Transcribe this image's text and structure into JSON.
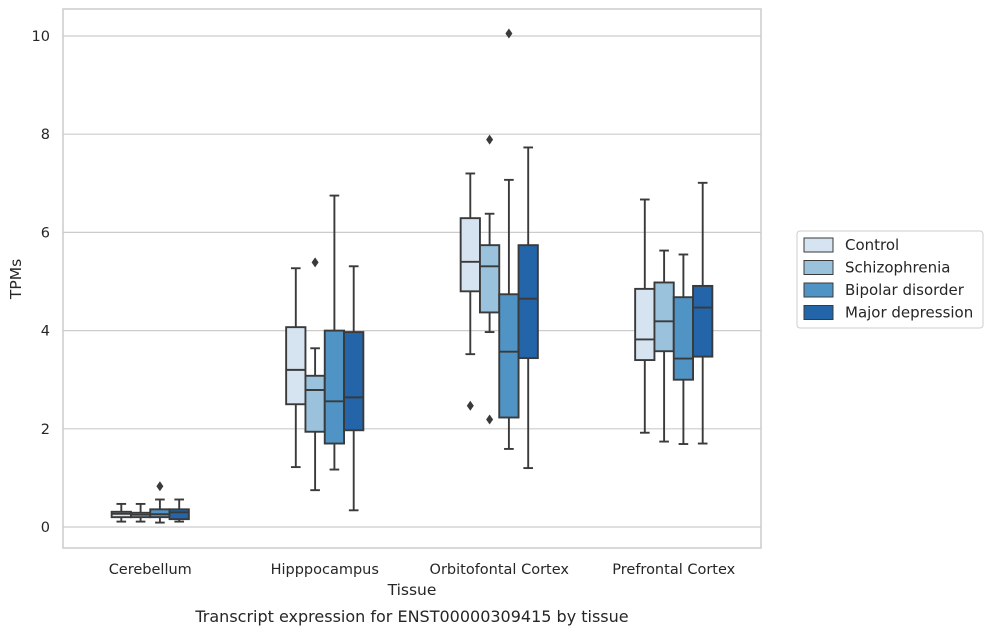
{
  "chart_data": {
    "type": "box",
    "title": "Transcript expression for ENST00000309415 by tissue",
    "xlabel": "Tissue",
    "ylabel": "TPMs",
    "ylim": [
      -0.4,
      10.55
    ],
    "yticks": [
      0,
      2,
      4,
      6,
      8,
      10
    ],
    "grid": true,
    "legend_position": "right",
    "categories": [
      "Cerebellum",
      "Hipppocampus",
      "Orbitofontal Cortex",
      "Prefrontal Cortex"
    ],
    "series": [
      {
        "name": "Control",
        "color": "#d6e3f1",
        "boxes": [
          {
            "whisker_low": 0.11,
            "q1": 0.2,
            "median": 0.27,
            "q3": 0.31,
            "whisker_high": 0.47,
            "outliers": []
          },
          {
            "whisker_low": 1.22,
            "q1": 2.5,
            "median": 3.2,
            "q3": 4.07,
            "whisker_high": 5.27,
            "outliers": []
          },
          {
            "whisker_low": 3.52,
            "q1": 4.8,
            "median": 5.4,
            "q3": 6.29,
            "whisker_high": 7.2,
            "outliers": [
              2.47
            ]
          },
          {
            "whisker_low": 1.92,
            "q1": 3.4,
            "median": 3.82,
            "q3": 4.85,
            "whisker_high": 6.67,
            "outliers": []
          }
        ]
      },
      {
        "name": "Schizophrenia",
        "color": "#9ac2dd",
        "boxes": [
          {
            "whisker_low": 0.11,
            "q1": 0.2,
            "median": 0.25,
            "q3": 0.29,
            "whisker_high": 0.47,
            "outliers": []
          },
          {
            "whisker_low": 0.75,
            "q1": 1.94,
            "median": 2.79,
            "q3": 3.08,
            "whisker_high": 3.64,
            "outliers": [
              5.39
            ]
          },
          {
            "whisker_low": 3.97,
            "q1": 4.37,
            "median": 5.31,
            "q3": 5.74,
            "whisker_high": 6.38,
            "outliers": [
              7.89,
              2.19
            ]
          },
          {
            "whisker_low": 1.74,
            "q1": 3.58,
            "median": 4.19,
            "q3": 4.98,
            "whisker_high": 5.63,
            "outliers": []
          }
        ]
      },
      {
        "name": "Bipolar disorder",
        "color": "#5094c5",
        "boxes": [
          {
            "whisker_low": 0.09,
            "q1": 0.2,
            "median": 0.26,
            "q3": 0.36,
            "whisker_high": 0.56,
            "outliers": [
              0.83
            ]
          },
          {
            "whisker_low": 1.17,
            "q1": 1.7,
            "median": 2.56,
            "q3": 4.0,
            "whisker_high": 6.75,
            "outliers": []
          },
          {
            "whisker_low": 1.59,
            "q1": 2.23,
            "median": 3.57,
            "q3": 4.74,
            "whisker_high": 7.07,
            "outliers": [
              10.05
            ]
          },
          {
            "whisker_low": 1.69,
            "q1": 3.0,
            "median": 3.43,
            "q3": 4.68,
            "whisker_high": 5.55,
            "outliers": []
          }
        ]
      },
      {
        "name": "Major depression",
        "color": "#2365a8",
        "boxes": [
          {
            "whisker_low": 0.11,
            "q1": 0.16,
            "median": 0.3,
            "q3": 0.36,
            "whisker_high": 0.56,
            "outliers": []
          },
          {
            "whisker_low": 0.34,
            "q1": 1.97,
            "median": 2.64,
            "q3": 3.97,
            "whisker_high": 5.31,
            "outliers": []
          },
          {
            "whisker_low": 1.2,
            "q1": 3.44,
            "median": 4.65,
            "q3": 5.74,
            "whisker_high": 7.73,
            "outliers": []
          },
          {
            "whisker_low": 1.7,
            "q1": 3.47,
            "median": 4.47,
            "q3": 4.91,
            "whisker_high": 7.01,
            "outliers": []
          }
        ]
      }
    ]
  }
}
